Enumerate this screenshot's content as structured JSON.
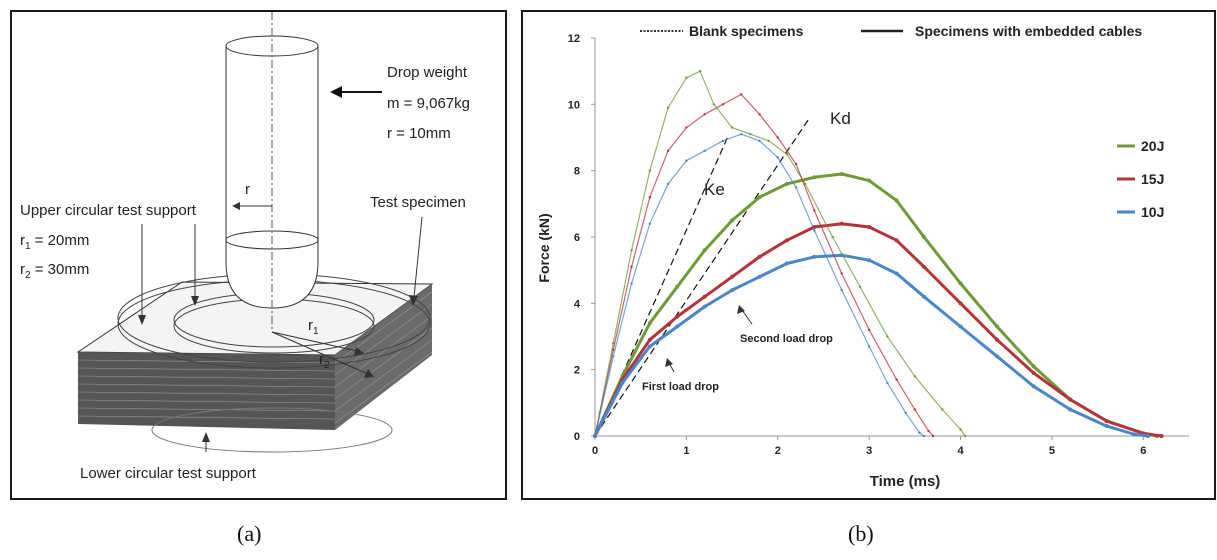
{
  "panel_a": {
    "caption": "(a)",
    "drop_weight": {
      "title": "Drop weight",
      "mass": "m = 9,067kg",
      "radius": "r = 10mm"
    },
    "radius_label": "r",
    "upper_support": {
      "title": "Upper circular test support",
      "r1_label": "r",
      "r1_sub": "1",
      "r1_value": " = 20mm",
      "r2_label": "r",
      "r2_sub": "2",
      "r2_value": " = 30mm"
    },
    "test_specimen": "Test specimen",
    "ring_r1_label": "r",
    "ring_r1_sub": "1",
    "ring_r2_label": "r",
    "ring_r2_sub": "2",
    "lower_support": "Lower circular test support"
  },
  "panel_b": {
    "caption": "(b)",
    "legend_top": {
      "blank": "Blank specimens",
      "embedded": "Specimens with embedded cables"
    },
    "annotations": {
      "kd": "Kd",
      "ke": "Ke",
      "second_drop": "Second load drop",
      "first_drop": "First load drop"
    }
  },
  "chart_data": {
    "type": "line",
    "xlabel": "Time (ms)",
    "ylabel": "Force (kN)",
    "xlim": [
      0,
      6.5
    ],
    "ylim": [
      0,
      12
    ],
    "xticks": [
      "0",
      "1",
      "2",
      "3",
      "4",
      "5",
      "6"
    ],
    "yticks": [
      "0",
      "2",
      "4",
      "6",
      "8",
      "10",
      "12"
    ],
    "grid": false,
    "legend_position": "right",
    "legend": [
      {
        "name": "20J",
        "color": "#6f9a37"
      },
      {
        "name": "15J",
        "color": "#b5333a"
      },
      {
        "name": "10J",
        "color": "#4a86c8"
      }
    ],
    "series": [
      {
        "name": "20J",
        "specimen": "Specimens with embedded cables",
        "color": "#6f9a37",
        "x": [
          0,
          0.3,
          0.6,
          0.9,
          1.2,
          1.5,
          1.8,
          2.1,
          2.4,
          2.7,
          3.0,
          3.3,
          3.6,
          4.0,
          4.4,
          4.8,
          5.2,
          5.6,
          6.0,
          6.15
        ],
        "y": [
          0,
          1.8,
          3.4,
          4.5,
          5.6,
          6.5,
          7.2,
          7.6,
          7.8,
          7.9,
          7.7,
          7.1,
          6.0,
          4.6,
          3.3,
          2.1,
          1.1,
          0.45,
          0.08,
          0
        ]
      },
      {
        "name": "15J",
        "specimen": "Specimens with embedded cables",
        "color": "#b5333a",
        "x": [
          0,
          0.3,
          0.6,
          0.9,
          1.2,
          1.5,
          1.8,
          2.1,
          2.4,
          2.7,
          3.0,
          3.3,
          3.6,
          4.0,
          4.4,
          4.8,
          5.2,
          5.6,
          6.0,
          6.2
        ],
        "y": [
          0,
          1.7,
          2.9,
          3.6,
          4.2,
          4.8,
          5.4,
          5.9,
          6.3,
          6.4,
          6.3,
          5.9,
          5.1,
          4.0,
          2.9,
          1.9,
          1.1,
          0.45,
          0.08,
          0
        ]
      },
      {
        "name": "10J",
        "specimen": "Specimens with embedded cables",
        "color": "#4a86c8",
        "x": [
          0,
          0.3,
          0.6,
          0.9,
          1.2,
          1.5,
          1.8,
          2.1,
          2.4,
          2.7,
          3.0,
          3.3,
          3.6,
          4.0,
          4.4,
          4.8,
          5.2,
          5.6,
          5.9,
          6.05
        ],
        "y": [
          0,
          1.6,
          2.7,
          3.3,
          3.9,
          4.4,
          4.8,
          5.2,
          5.4,
          5.45,
          5.3,
          4.9,
          4.2,
          3.3,
          2.4,
          1.5,
          0.8,
          0.3,
          0.05,
          0
        ]
      },
      {
        "name": "20J",
        "specimen": "Blank specimens",
        "color": "#6f9a37",
        "x": [
          0,
          0.2,
          0.4,
          0.6,
          0.8,
          1.0,
          1.15,
          1.3,
          1.5,
          1.7,
          1.9,
          2.1,
          2.3,
          2.6,
          2.9,
          3.2,
          3.5,
          3.8,
          4.0,
          4.05
        ],
        "y": [
          0,
          2.8,
          5.6,
          8.0,
          9.9,
          10.8,
          11.0,
          10.0,
          9.3,
          9.1,
          8.9,
          8.5,
          7.6,
          6.0,
          4.5,
          3.0,
          1.8,
          0.8,
          0.2,
          0
        ]
      },
      {
        "name": "15J",
        "specimen": "Blank specimens",
        "color": "#b5333a",
        "x": [
          0,
          0.2,
          0.4,
          0.6,
          0.8,
          1.0,
          1.2,
          1.4,
          1.6,
          1.8,
          2.0,
          2.2,
          2.4,
          2.7,
          3.0,
          3.3,
          3.5,
          3.65,
          3.7
        ],
        "y": [
          0,
          2.6,
          5.1,
          7.2,
          8.6,
          9.3,
          9.7,
          10.0,
          10.3,
          9.7,
          9.0,
          8.2,
          6.8,
          4.9,
          3.2,
          1.7,
          0.8,
          0.15,
          0
        ]
      },
      {
        "name": "10J",
        "specimen": "Blank specimens",
        "color": "#4a86c8",
        "x": [
          0,
          0.2,
          0.4,
          0.6,
          0.8,
          1.0,
          1.2,
          1.4,
          1.6,
          1.8,
          2.0,
          2.2,
          2.4,
          2.7,
          3.0,
          3.2,
          3.4,
          3.55,
          3.6
        ],
        "y": [
          0,
          2.4,
          4.6,
          6.4,
          7.6,
          8.3,
          8.6,
          8.9,
          9.1,
          8.9,
          8.4,
          7.5,
          6.2,
          4.4,
          2.7,
          1.6,
          0.7,
          0.1,
          0
        ]
      }
    ],
    "reference_lines": [
      {
        "name": "Ke",
        "x": [
          0,
          1.45
        ],
        "y": [
          0,
          9.0
        ]
      },
      {
        "name": "Kd",
        "x": [
          0,
          2.35
        ],
        "y": [
          0,
          9.6
        ]
      }
    ]
  }
}
